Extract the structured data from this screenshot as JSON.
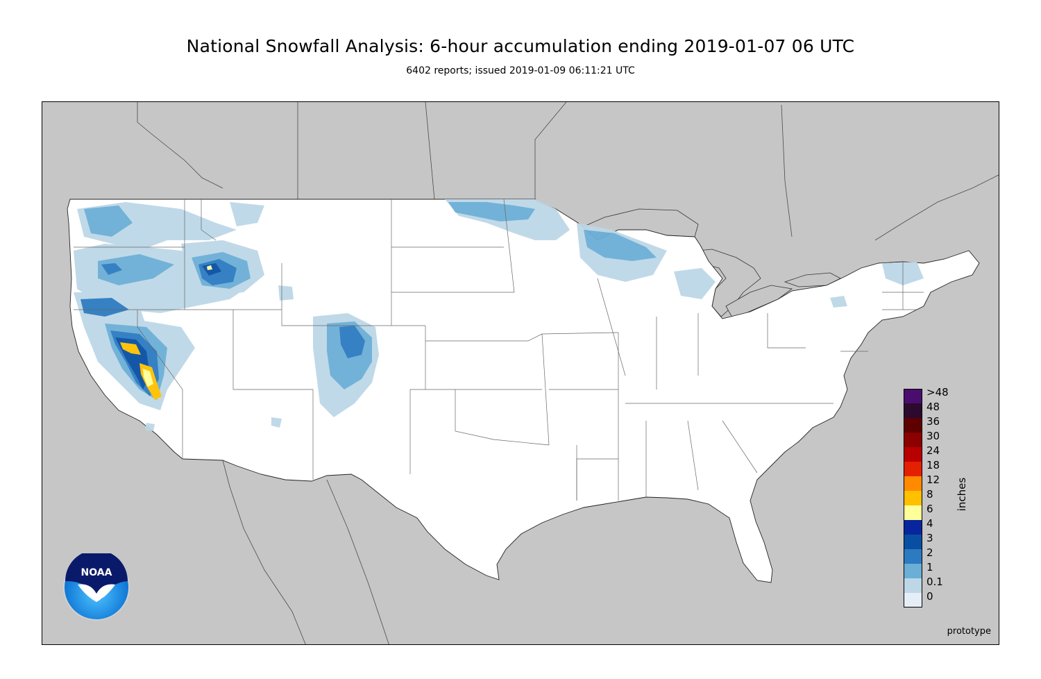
{
  "title": "National Snowfall Analysis: 6-hour accumulation ending 2019-01-07 06 UTC",
  "subtitle": "6402 reports; issued 2019-01-09 06:11:21 UTC",
  "legend": {
    "units_label": "inches",
    "levels": [
      {
        "label": ">48",
        "color": "#4a0d6e"
      },
      {
        "label": "48",
        "color": "#2b0a2e"
      },
      {
        "label": "36",
        "color": "#5e0000"
      },
      {
        "label": "30",
        "color": "#8b0000"
      },
      {
        "label": "24",
        "color": "#b80000"
      },
      {
        "label": "18",
        "color": "#e52000"
      },
      {
        "label": "12",
        "color": "#ff8a00"
      },
      {
        "label": "8",
        "color": "#ffc000"
      },
      {
        "label": "6",
        "color": "#ffff99"
      },
      {
        "label": "4",
        "color": "#08259e"
      },
      {
        "label": "3",
        "color": "#084fa3"
      },
      {
        "label": "2",
        "color": "#2c7bc0"
      },
      {
        "label": "1",
        "color": "#6baed6"
      },
      {
        "label": "0.1",
        "color": "#bdd7e7"
      },
      {
        "label": "0",
        "color": "#e5eef7"
      }
    ]
  },
  "stamp": "prototype",
  "logo": {
    "text": "NOAA",
    "icon": "noaa-logo"
  },
  "colors": {
    "background_land_outside": "#c6c6c6",
    "conus": "#ffffff",
    "state_border": "#555555"
  }
}
